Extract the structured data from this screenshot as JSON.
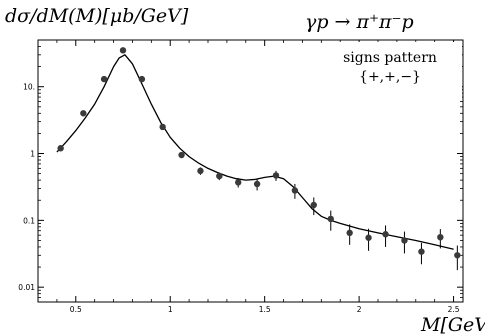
{
  "chart_data": {
    "type": "scatter",
    "title": "dσ/dM(M)[μb/GeV]",
    "subtitle": "γp → π⁺π⁻p",
    "xlabel": "M[GeV]",
    "ylabel": "",
    "yscale": "log",
    "xlim": [
      0.3,
      2.55
    ],
    "ylim": [
      0.006,
      50
    ],
    "xticks": [
      {
        "value": 0.5,
        "label": "0.5"
      },
      {
        "value": 1,
        "label": "1"
      },
      {
        "value": 1.5,
        "label": "1.5"
      },
      {
        "value": 2,
        "label": "2"
      },
      {
        "value": 2.5,
        "label": "2.5"
      }
    ],
    "yticks": [
      {
        "value": 10,
        "label": "10."
      },
      {
        "value": 1,
        "label": "1"
      },
      {
        "value": 0.1,
        "label": "0.1"
      },
      {
        "value": 0.01,
        "label": "0.01"
      }
    ],
    "legend": {
      "position": "top-right",
      "lines": [
        "signs pattern",
        "{+,+,−}"
      ]
    },
    "series": [
      {
        "kind": "points",
        "x": [
          0.42,
          0.54,
          0.65,
          0.75,
          0.85,
          0.96,
          1.06,
          1.16,
          1.26,
          1.36,
          1.46,
          1.56,
          1.66,
          1.76,
          1.85,
          1.95,
          2.05,
          2.14,
          2.24,
          2.33,
          2.43,
          2.52
        ],
        "y": [
          1.2,
          4.0,
          13.0,
          35.0,
          13.0,
          2.5,
          0.95,
          0.55,
          0.46,
          0.37,
          0.35,
          0.47,
          0.28,
          0.17,
          0.105,
          0.065,
          0.055,
          0.062,
          0.05,
          0.034,
          0.056,
          0.03
        ],
        "yerr": [
          0.1,
          0.3,
          0.9,
          2.0,
          0.9,
          0.2,
          0.08,
          0.07,
          0.06,
          0.06,
          0.07,
          0.08,
          0.07,
          0.05,
          0.035,
          0.022,
          0.02,
          0.022,
          0.018,
          0.012,
          0.018,
          0.012
        ]
      },
      {
        "kind": "line",
        "x": [
          0.4,
          0.45,
          0.5,
          0.55,
          0.6,
          0.65,
          0.7,
          0.73,
          0.76,
          0.8,
          0.85,
          0.9,
          0.95,
          1.0,
          1.05,
          1.1,
          1.15,
          1.2,
          1.25,
          1.3,
          1.35,
          1.4,
          1.45,
          1.5,
          1.55,
          1.6,
          1.65,
          1.7,
          1.75,
          1.8,
          1.85,
          1.9,
          2.0,
          2.1,
          2.2,
          2.3,
          2.4,
          2.5
        ],
        "y": [
          1.05,
          1.5,
          2.2,
          3.4,
          5.5,
          10.0,
          20.0,
          27.0,
          30.0,
          22.0,
          11.0,
          5.5,
          2.9,
          1.75,
          1.2,
          0.9,
          0.72,
          0.6,
          0.52,
          0.46,
          0.42,
          0.4,
          0.41,
          0.44,
          0.46,
          0.42,
          0.32,
          0.22,
          0.15,
          0.115,
          0.1,
          0.09,
          0.075,
          0.065,
          0.057,
          0.05,
          0.043,
          0.037
        ]
      }
    ]
  }
}
